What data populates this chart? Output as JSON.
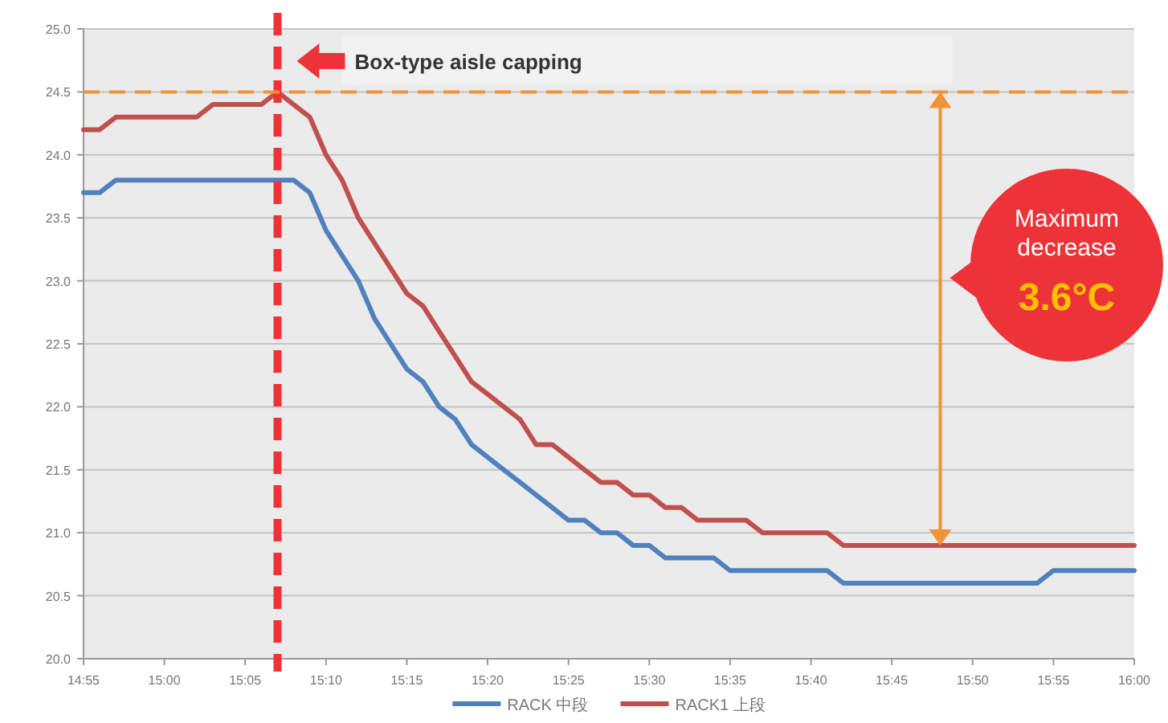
{
  "chart_data": {
    "type": "line",
    "x": [
      14.9167,
      14.9333,
      14.95,
      14.9667,
      14.9833,
      15,
      15.0167,
      15.0333,
      15.05,
      15.0667,
      15.0833,
      15.1,
      15.1167,
      15.1333,
      15.15,
      15.1667,
      15.1833,
      15.2,
      15.2167,
      15.2333,
      15.25,
      15.2667,
      15.2833,
      15.3,
      15.3167,
      15.3333,
      15.35,
      15.3667,
      15.3833,
      15.4,
      15.4167,
      15.4333,
      15.45,
      15.4667,
      15.4833,
      15.5,
      15.5167,
      15.5333,
      15.55,
      15.5667,
      15.5833,
      15.6,
      15.6167,
      15.6333,
      15.65,
      15.6667,
      15.6833,
      15.7,
      15.7167,
      15.7333,
      15.75,
      15.7667,
      15.7833,
      15.8,
      15.8167,
      15.8333,
      15.85,
      15.8667,
      15.8833,
      15.9,
      15.9167,
      15.9333,
      15.95,
      15.9667,
      15.9833,
      16
    ],
    "series": [
      {
        "name": "RACK 中段",
        "color": "#4f81bd",
        "values": [
          23.7,
          23.7,
          23.8,
          23.8,
          23.8,
          23.8,
          23.8,
          23.8,
          23.8,
          23.8,
          23.8,
          23.8,
          23.8,
          23.8,
          23.7,
          23.4,
          23.2,
          23.0,
          22.7,
          22.5,
          22.3,
          22.2,
          22.0,
          21.9,
          21.7,
          21.6,
          21.5,
          21.4,
          21.3,
          21.2,
          21.1,
          21.1,
          21.0,
          21.0,
          20.9,
          20.9,
          20.8,
          20.8,
          20.8,
          20.8,
          20.7,
          20.7,
          20.7,
          20.7,
          20.7,
          20.7,
          20.7,
          20.6,
          20.6,
          20.6,
          20.6,
          20.6,
          20.6,
          20.6,
          20.6,
          20.6,
          20.6,
          20.6,
          20.6,
          20.6,
          20.7,
          20.7,
          20.7,
          20.7,
          20.7,
          20.7
        ]
      },
      {
        "name": "RACK1 上段",
        "color": "#c0504d",
        "values": [
          24.2,
          24.2,
          24.3,
          24.3,
          24.3,
          24.3,
          24.3,
          24.3,
          24.4,
          24.4,
          24.4,
          24.4,
          24.5,
          24.4,
          24.3,
          24.0,
          23.8,
          23.5,
          23.3,
          23.1,
          22.9,
          22.8,
          22.6,
          22.4,
          22.2,
          22.1,
          22.0,
          21.9,
          21.7,
          21.7,
          21.6,
          21.5,
          21.4,
          21.4,
          21.3,
          21.3,
          21.2,
          21.2,
          21.1,
          21.1,
          21.1,
          21.1,
          21.0,
          21.0,
          21.0,
          21.0,
          21.0,
          20.9,
          20.9,
          20.9,
          20.9,
          20.9,
          20.9,
          20.9,
          20.9,
          20.9,
          20.9,
          20.9,
          20.9,
          20.9,
          20.9,
          20.9,
          20.9,
          20.9,
          20.9,
          20.9
        ]
      }
    ],
    "xlim": [
      14.9167,
      16
    ],
    "xticks": [
      {
        "value": 14.9167,
        "label": "14:55"
      },
      {
        "value": 15,
        "label": "15:00"
      },
      {
        "value": 15.0833,
        "label": "15:05"
      },
      {
        "value": 15.1667,
        "label": "15:10"
      },
      {
        "value": 15.25,
        "label": "15:15"
      },
      {
        "value": 15.3333,
        "label": "15:20"
      },
      {
        "value": 15.4167,
        "label": "15:25"
      },
      {
        "value": 15.5,
        "label": "15:30"
      },
      {
        "value": 15.5833,
        "label": "15:35"
      },
      {
        "value": 15.6667,
        "label": "15:40"
      },
      {
        "value": 15.75,
        "label": "15:45"
      },
      {
        "value": 15.8333,
        "label": "15:50"
      },
      {
        "value": 15.9167,
        "label": "15:55"
      },
      {
        "value": 16,
        "label": "16:00"
      }
    ],
    "ylim": [
      20,
      25
    ],
    "yticks": [
      {
        "value": 20,
        "label": "20.0"
      },
      {
        "value": 20.5,
        "label": "20.5"
      },
      {
        "value": 21,
        "label": "21.0"
      },
      {
        "value": 21.5,
        "label": "21.5"
      },
      {
        "value": 22,
        "label": "22.0"
      },
      {
        "value": 22.5,
        "label": "22.5"
      },
      {
        "value": 23,
        "label": "23.0"
      },
      {
        "value": 23.5,
        "label": "23.5"
      },
      {
        "value": 24,
        "label": "24.0"
      },
      {
        "value": 24.5,
        "label": "24.5"
      },
      {
        "value": 25,
        "label": "25.0"
      }
    ],
    "grid": "y",
    "legend": "bottom",
    "ref_lines": [
      {
        "axis": "x",
        "value": 15.1167,
        "color": "#ee3338",
        "line_style": "dashed"
      },
      {
        "axis": "y",
        "value": 24.5,
        "color": "#f39237",
        "line_style": "dashed"
      }
    ],
    "annotations": [
      "Box-type aisle capping",
      "Maximum decrease 3.6°C"
    ]
  }
}
